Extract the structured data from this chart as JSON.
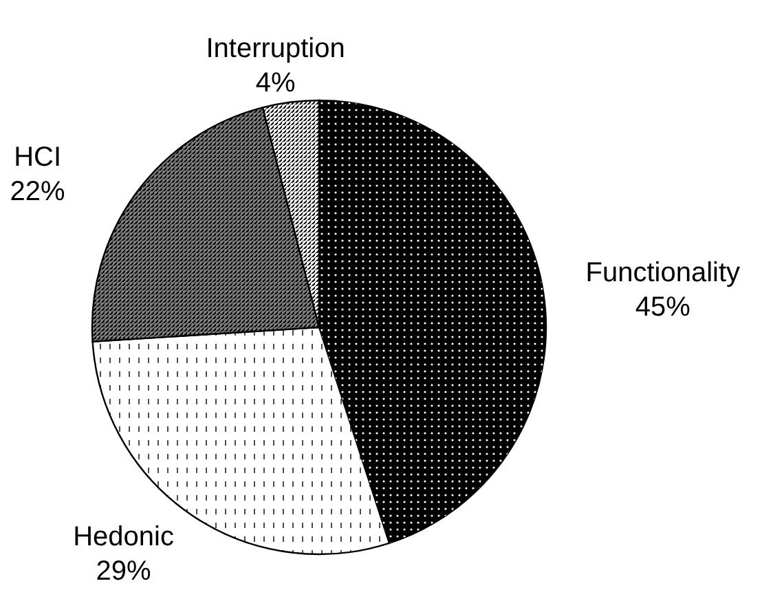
{
  "chart_data": {
    "type": "pie",
    "categories": [
      "Functionality",
      "Hedonic",
      "HCI",
      "Interruption"
    ],
    "values": [
      45,
      29,
      22,
      4
    ],
    "colors": [
      "#000000",
      "#ffffff",
      "#808080",
      "#ffffff"
    ],
    "value_labels": [
      "45%",
      "29%",
      "22%",
      "4%"
    ]
  }
}
